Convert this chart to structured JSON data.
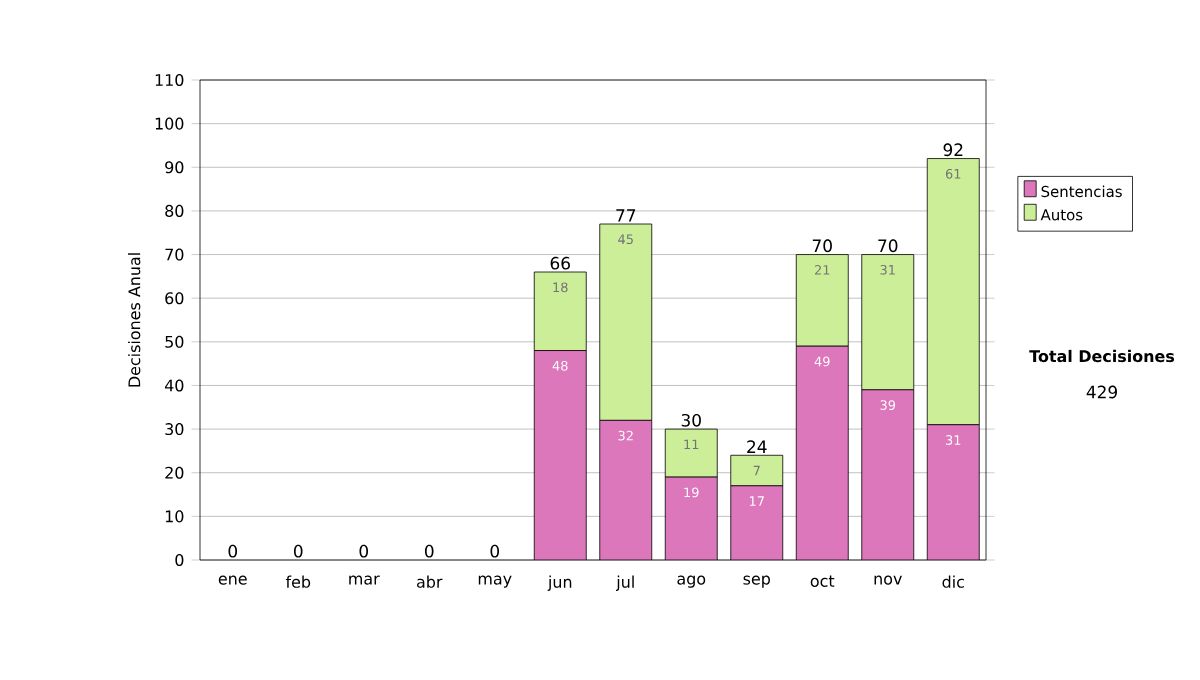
{
  "chart_data": {
    "type": "bar",
    "stacked": true,
    "ylabel": "Decisiones Anual",
    "categories": [
      "ene",
      "feb",
      "mar",
      "abr",
      "may",
      "jun",
      "jul",
      "ago",
      "sep",
      "oct",
      "nov",
      "dic"
    ],
    "series": [
      {
        "name": "Sentencias",
        "color": "#dd77bb",
        "values": [
          0,
          0,
          0,
          0,
          0,
          48,
          32,
          19,
          17,
          49,
          39,
          31
        ],
        "value_labels": [
          null,
          null,
          null,
          null,
          null,
          "48",
          "32",
          "19",
          "17",
          "49",
          "39",
          "31"
        ]
      },
      {
        "name": "Autos",
        "color": "#ccee99",
        "values": [
          0,
          0,
          0,
          0,
          0,
          18,
          45,
          11,
          7,
          21,
          31,
          61
        ],
        "value_labels": [
          null,
          null,
          null,
          null,
          null,
          "18",
          "45",
          "11",
          "7",
          "21",
          "31",
          "61"
        ]
      }
    ],
    "totals": [
      "0",
      "0",
      "0",
      "0",
      "0",
      "66",
      "77",
      "30",
      "24",
      "70",
      "70",
      "92"
    ],
    "ylim": [
      0,
      110
    ],
    "yticks": [
      0,
      10,
      20,
      30,
      40,
      50,
      60,
      70,
      80,
      90,
      100,
      110
    ],
    "grid": "y",
    "legend": "right",
    "annotations": [
      "Total Decisiones",
      "429"
    ]
  }
}
